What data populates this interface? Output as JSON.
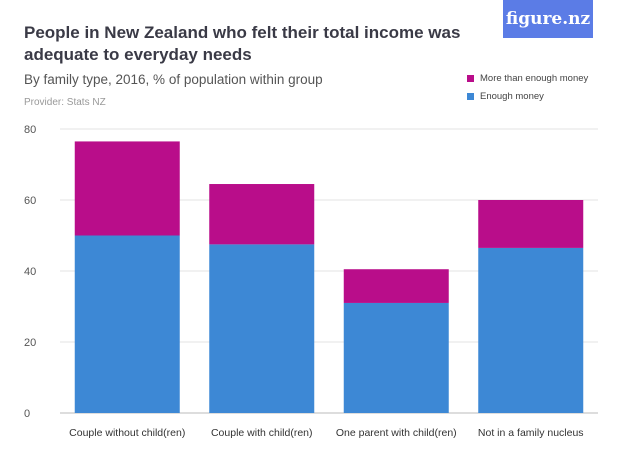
{
  "logo": {
    "text": "figure.nz"
  },
  "chart_data": {
    "type": "bar",
    "stacked": true,
    "title": "People in New Zealand who felt their total income was adequate to everyday needs",
    "subtitle": "By family type, 2016, % of population within group",
    "provider": "Provider: Stats NZ",
    "categories": [
      "Couple without child(ren)",
      "Couple with child(ren)",
      "One parent with child(ren)",
      "Not in a family nucleus"
    ],
    "series": [
      {
        "name": "Enough money",
        "color": "#3d88d5",
        "values": [
          50,
          47.5,
          31,
          46.5
        ]
      },
      {
        "name": "More than enough money",
        "color": "#b90d8a",
        "values": [
          26.5,
          17,
          9.5,
          13.5
        ]
      }
    ],
    "legend_order": [
      1,
      0
    ],
    "legend_position": "top-right",
    "yticks": [
      0,
      20,
      40,
      60,
      80
    ],
    "ylim": [
      0,
      80
    ],
    "grid": true,
    "xlabel": "",
    "ylabel": ""
  }
}
